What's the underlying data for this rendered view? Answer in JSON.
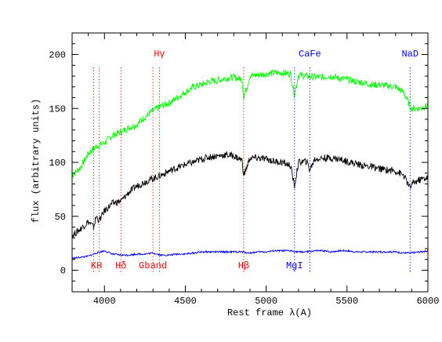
{
  "chart_data": {
    "type": "line",
    "title": "",
    "xlabel": "Rest frame λ(A)",
    "ylabel": "flux (arbitrary units)",
    "xlim": [
      3800,
      6000
    ],
    "ylim": [
      -20,
      220
    ],
    "x_ticks": [
      "4000",
      "4500",
      "5000",
      "5500",
      "6000"
    ],
    "x_tick_values": [
      4000,
      4500,
      5000,
      5500,
      6000
    ],
    "y_ticks": [
      "0",
      "50",
      "100",
      "150",
      "200"
    ],
    "y_tick_values": [
      0,
      50,
      100,
      150,
      200
    ],
    "grid": false,
    "colors": {
      "green": "#00ff00",
      "black": "#000000",
      "blue": "#0000ff",
      "red": "#ff0000"
    },
    "series": [
      {
        "color": "#00ff00",
        "x": [
          3800,
          3850,
          3900,
          3950,
          4000,
          4050,
          4100,
          4150,
          4200,
          4250,
          4300,
          4350,
          4400,
          4450,
          4500,
          4550,
          4600,
          4650,
          4700,
          4750,
          4800,
          4850,
          4862,
          4900,
          4950,
          5000,
          5050,
          5100,
          5150,
          5175,
          5200,
          5250,
          5300,
          5350,
          5400,
          5450,
          5500,
          5550,
          5600,
          5650,
          5700,
          5750,
          5800,
          5850,
          5890,
          5900,
          5950,
          6000
        ],
        "y": [
          88,
          95,
          108,
          115,
          118,
          125,
          128,
          132,
          135,
          142,
          148,
          152,
          155,
          160,
          165,
          170,
          172,
          175,
          176,
          178,
          179,
          177,
          160,
          180,
          181,
          182,
          183,
          183,
          182,
          163,
          181,
          180,
          179,
          179,
          180,
          178,
          177,
          175,
          174,
          172,
          172,
          171,
          170,
          165,
          152,
          150,
          150,
          153
        ]
      },
      {
        "color": "#000000",
        "x": [
          3800,
          3850,
          3900,
          3933,
          3950,
          3968,
          4000,
          4050,
          4102,
          4150,
          4200,
          4250,
          4300,
          4350,
          4400,
          4450,
          4500,
          4550,
          4600,
          4650,
          4700,
          4750,
          4800,
          4850,
          4862,
          4900,
          4950,
          5000,
          5050,
          5100,
          5150,
          5175,
          5200,
          5250,
          5270,
          5300,
          5350,
          5400,
          5450,
          5500,
          5550,
          5600,
          5650,
          5700,
          5750,
          5800,
          5850,
          5890,
          5900,
          5950,
          6000
        ],
        "y": [
          32,
          38,
          45,
          40,
          50,
          46,
          55,
          62,
          64,
          72,
          78,
          82,
          85,
          88,
          92,
          95,
          98,
          100,
          103,
          105,
          106,
          107,
          106,
          102,
          88,
          104,
          104,
          103,
          101,
          100,
          97,
          78,
          100,
          101,
          93,
          103,
          104,
          104,
          103,
          101,
          99,
          97,
          96,
          94,
          93,
          92,
          88,
          76,
          80,
          84,
          86
        ]
      },
      {
        "color": "#0000ff",
        "x": [
          3800,
          3850,
          3900,
          3950,
          4000,
          4050,
          4100,
          4150,
          4200,
          4250,
          4300,
          4350,
          4400,
          4450,
          4500,
          4550,
          4600,
          4650,
          4700,
          4750,
          4800,
          4850,
          4900,
          4950,
          5000,
          5050,
          5100,
          5150,
          5200,
          5250,
          5300,
          5350,
          5400,
          5450,
          5500,
          5550,
          5600,
          5650,
          5700,
          5750,
          5800,
          5850,
          5900,
          5950,
          6000
        ],
        "y": [
          11,
          12,
          13,
          16,
          18,
          15,
          14,
          14,
          15,
          15,
          16,
          14,
          14,
          15,
          15,
          16,
          17,
          17,
          17,
          17,
          17,
          17,
          16,
          17,
          17,
          18,
          18,
          18,
          17,
          17,
          18,
          18,
          17,
          18,
          18,
          17,
          17,
          17,
          17,
          17,
          17,
          16,
          16,
          17,
          18
        ]
      }
    ],
    "lines": [
      {
        "label": "K",
        "x": 3933,
        "color": "#ff0000",
        "label_pos": "bottom"
      },
      {
        "label": "H",
        "x": 3968,
        "color": "#ff0000",
        "label_pos": "bottom"
      },
      {
        "label": "Hδ",
        "x": 4102,
        "color": "#ff0000",
        "label_pos": "bottom"
      },
      {
        "label": "Gband",
        "x": 4300,
        "color": "#ff0000",
        "label_pos": "bottom"
      },
      {
        "label": "Hγ",
        "x": 4340,
        "color": "#ff0000",
        "label_pos": "top"
      },
      {
        "label": "Hβ",
        "x": 4861,
        "color": "#ff0000",
        "label_pos": "bottom"
      },
      {
        "label": "MgI",
        "x": 5175,
        "color": "#0000ff",
        "label_pos": "bottom"
      },
      {
        "label": "CaFe",
        "x": 5270,
        "color": "#0000ff",
        "label_pos": "top"
      },
      {
        "label": "NaD",
        "x": 5890,
        "color": "#0000ff",
        "label_pos": "top"
      }
    ]
  }
}
